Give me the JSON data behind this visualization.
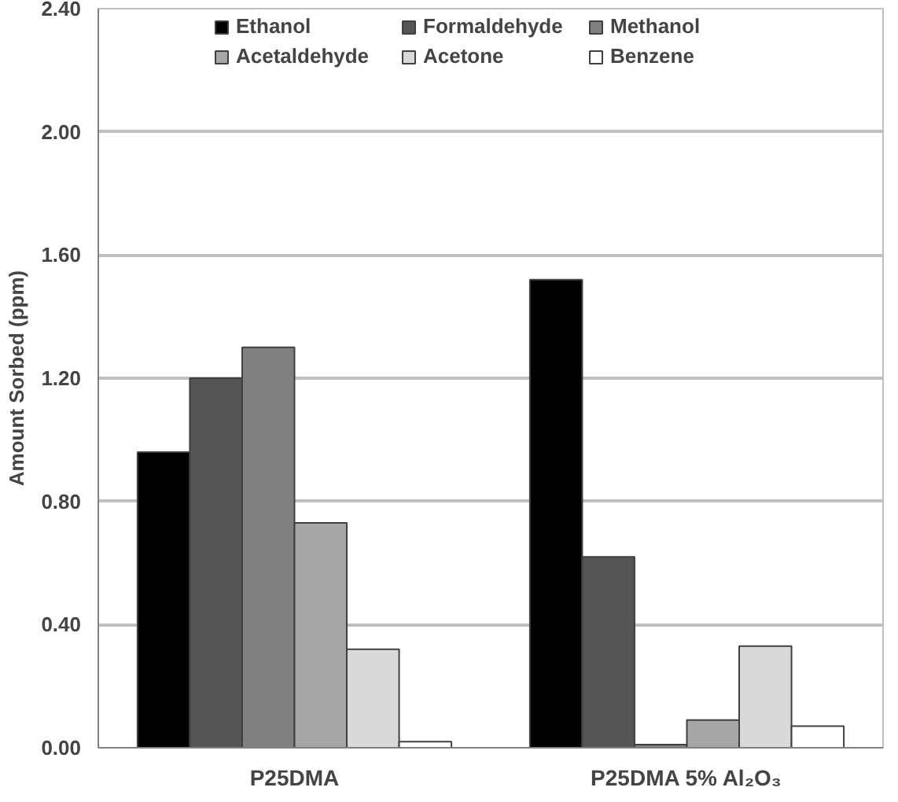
{
  "chart_data": {
    "type": "bar",
    "ylabel": "Amount Sorbed (ppm)",
    "categories": [
      "P25DMA",
      "P25DMA 5% Al₂O₃"
    ],
    "series": [
      {
        "name": "Ethanol",
        "color": "#000000",
        "values": [
          0.96,
          1.52
        ]
      },
      {
        "name": "Formaldehyde",
        "color": "#555555",
        "values": [
          1.2,
          0.62
        ]
      },
      {
        "name": "Methanol",
        "color": "#808080",
        "values": [
          1.3,
          0.01
        ]
      },
      {
        "name": "Acetaldehyde",
        "color": "#a6a6a6",
        "values": [
          0.73,
          0.09
        ]
      },
      {
        "name": "Acetone",
        "color": "#d9d9d9",
        "values": [
          0.32,
          0.33
        ]
      },
      {
        "name": "Benzene",
        "color": "#ffffff",
        "values": [
          0.02,
          0.07
        ]
      }
    ],
    "ylim": [
      0,
      2.4
    ],
    "yticks": [
      {
        "value": 0,
        "label": "0.00"
      },
      {
        "value": 0.4,
        "label": "0.40"
      },
      {
        "value": 0.8,
        "label": "0.80"
      },
      {
        "value": 1.2,
        "label": "1.20"
      },
      {
        "value": 1.6,
        "label": "1.60"
      },
      {
        "value": 2.0,
        "label": "2.00"
      },
      {
        "value": 2.4,
        "label": "2.40"
      }
    ],
    "grid": "y",
    "legend": "top"
  }
}
